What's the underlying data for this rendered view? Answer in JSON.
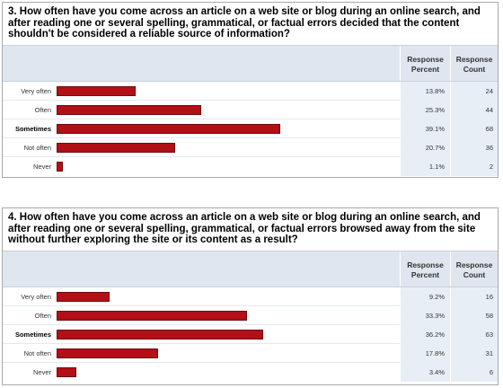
{
  "chart_data": [
    {
      "type": "bar",
      "orientation": "horizontal",
      "title": "3. How often have you come across an article on a web site or blog during an online search, and after reading one or several spelling, grammatical, or factual errors decided that the content shouldn't be considered a reliable source of information?",
      "headers": {
        "percent": "Response Percent",
        "count": "Response Count"
      },
      "categories": [
        "Very often",
        "Often",
        "Sometimes",
        "Not often",
        "Never"
      ],
      "percent_labels": [
        "13.8%",
        "25.3%",
        "39.1%",
        "20.7%",
        "1.1%"
      ],
      "values": [
        13.8,
        25.3,
        39.1,
        20.7,
        1.1
      ],
      "counts": [
        24,
        44,
        68,
        36,
        2
      ],
      "xlim": [
        0,
        100
      ],
      "highlight": "Sometimes",
      "bar_color": "#b30f16"
    },
    {
      "type": "bar",
      "orientation": "horizontal",
      "title": "4. How often have you come across an article on a web site or blog during an online search, and after reading one or several spelling, grammatical, or factual errors browsed away from the site without further exploring the site or its content as a result?",
      "headers": {
        "percent": "Response Percent",
        "count": "Response Count"
      },
      "categories": [
        "Very often",
        "Often",
        "Sometimes",
        "Not often",
        "Never"
      ],
      "percent_labels": [
        "9.2%",
        "33.3%",
        "36.2%",
        "17.8%",
        "3.4%"
      ],
      "values": [
        9.2,
        33.3,
        36.2,
        17.8,
        3.4
      ],
      "counts": [
        16,
        58,
        63,
        31,
        6
      ],
      "xlim": [
        0,
        100
      ],
      "highlight": "Sometimes",
      "bar_color": "#b30f16"
    }
  ]
}
